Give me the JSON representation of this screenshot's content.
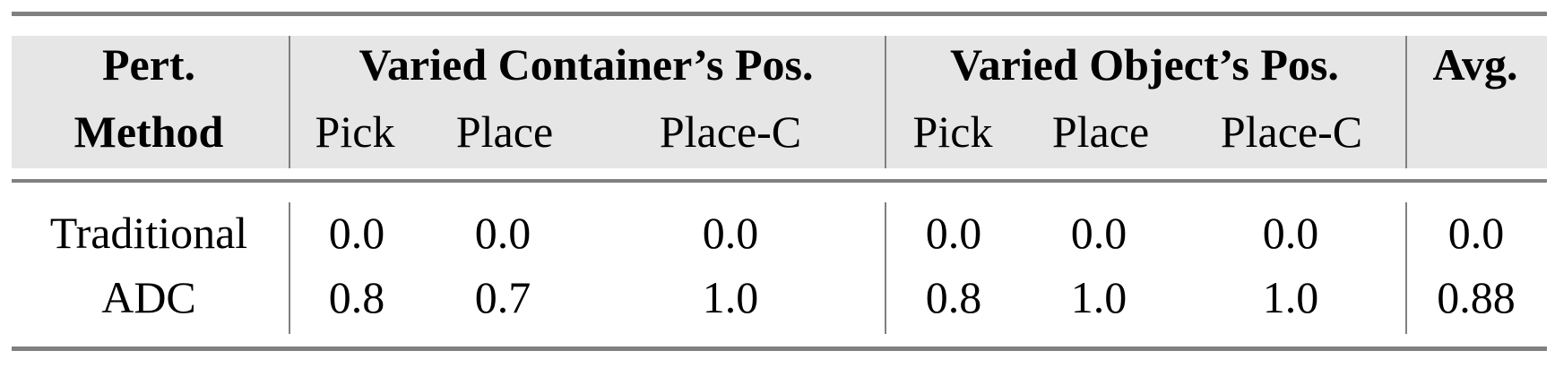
{
  "header": {
    "method_line1": "Pert.",
    "method_line2": "Method",
    "group1": "Varied Container’s Pos.",
    "group2": "Varied Object’s Pos.",
    "avg": "Avg.",
    "sub": [
      "Pick",
      "Place",
      "Place-C",
      "Pick",
      "Place",
      "Place-C"
    ]
  },
  "rows": [
    {
      "method": "Traditional",
      "values": [
        "0.0",
        "0.0",
        "0.0",
        "0.0",
        "0.0",
        "0.0",
        "0.0"
      ]
    },
    {
      "method": "ADC",
      "values": [
        "0.8",
        "0.7",
        "1.0",
        "0.8",
        "1.0",
        "1.0",
        "0.88"
      ]
    }
  ],
  "colors": {
    "rule": "#808080",
    "header_bg": "#e6e6e6"
  }
}
